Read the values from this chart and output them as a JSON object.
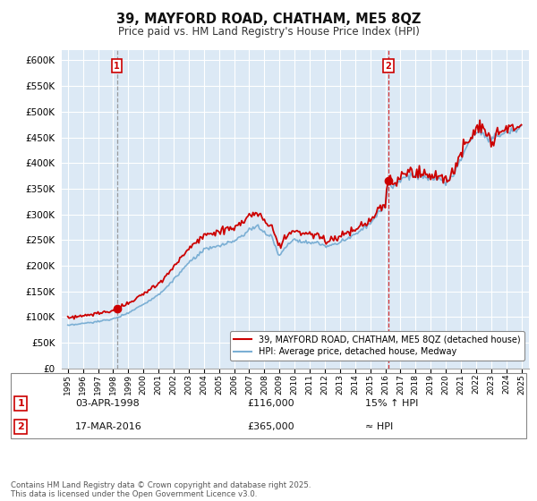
{
  "title": "39, MAYFORD ROAD, CHATHAM, ME5 8QZ",
  "subtitle": "Price paid vs. HM Land Registry's House Price Index (HPI)",
  "legend_line1": "39, MAYFORD ROAD, CHATHAM, ME5 8QZ (detached house)",
  "legend_line2": "HPI: Average price, detached house, Medway",
  "sale1_date": "03-APR-1998",
  "sale1_price": "£116,000",
  "sale1_hpi": "15% ↑ HPI",
  "sale2_date": "17-MAR-2016",
  "sale2_price": "£365,000",
  "sale2_hpi": "≈ HPI",
  "footer": "Contains HM Land Registry data © Crown copyright and database right 2025.\nThis data is licensed under the Open Government Licence v3.0.",
  "ylim": [
    0,
    620000
  ],
  "yticks": [
    0,
    50000,
    100000,
    150000,
    200000,
    250000,
    300000,
    350000,
    400000,
    450000,
    500000,
    550000,
    600000
  ],
  "hpi_color": "#7bafd4",
  "property_color": "#cc0000",
  "marker_color": "#cc0000",
  "sale1_vline_color": "#888888",
  "sale2_vline_color": "#cc0000",
  "background_color": "#ffffff",
  "plot_bg_color": "#dce9f5",
  "grid_color": "#ffffff",
  "sale1_year": 1998.25,
  "sale1_value": 116000,
  "sale2_year": 2016.21,
  "sale2_value": 365000
}
